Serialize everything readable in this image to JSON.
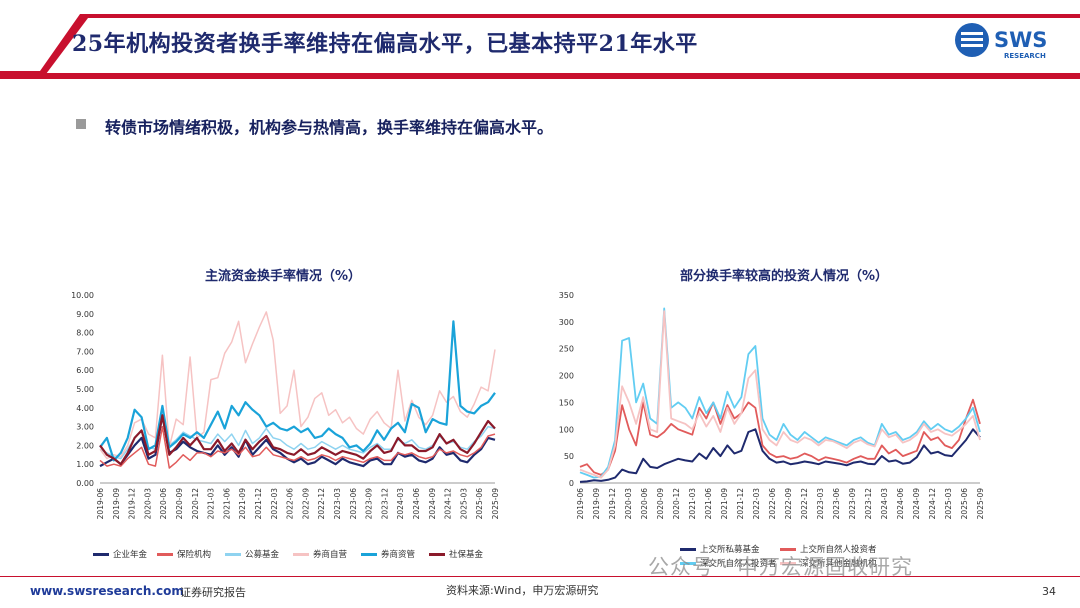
{
  "header": {
    "title": "25年机构投资者换手率维持在偏高水平，已基本持平21年水平",
    "logo_text": "SWS",
    "logo_subtext": "RESEARCH"
  },
  "bullet": {
    "text": "转债市场情绪积极，机构参与热情高，换手率维持在偏高水平。"
  },
  "colors": {
    "navy": "#1f2a6e",
    "accent_red": "#c8102e",
    "brand_blue": "#1f3b99"
  },
  "chart_data": [
    {
      "type": "line",
      "title": "主流资金换手率情况（%）",
      "ylim": [
        0,
        10
      ],
      "yticks": [
        "0.00",
        "1.00",
        "2.00",
        "3.00",
        "4.00",
        "5.00",
        "6.00",
        "7.00",
        "8.00",
        "9.00",
        "10.00"
      ],
      "xticks": [
        "2019-06",
        "2019-09",
        "2019-12",
        "2020-03",
        "2020-06",
        "2020-09",
        "2020-12",
        "2021-03",
        "2021-06",
        "2021-09",
        "2021-12",
        "2022-03",
        "2022-06",
        "2022-09",
        "2022-12",
        "2023-03",
        "2023-06",
        "2023-09",
        "2023-12",
        "2024-03",
        "2024-06",
        "2024-09",
        "2024-12",
        "2025-03",
        "2025-06",
        "2025-09"
      ],
      "series": [
        {
          "name": "企业年金",
          "color": "#1f2a6e",
          "width": 2.2,
          "values": [
            0.9,
            1.1,
            1.3,
            1.0,
            1.5,
            2.0,
            2.4,
            1.3,
            1.5,
            3.6,
            1.6,
            1.8,
            2.2,
            1.9,
            1.7,
            1.6,
            1.5,
            2.0,
            1.5,
            1.9,
            1.4,
            2.3,
            1.5,
            1.9,
            2.3,
            1.8,
            1.6,
            1.3,
            1.1,
            1.3,
            1.0,
            1.1,
            1.4,
            1.2,
            1.0,
            1.3,
            1.1,
            1.0,
            0.9,
            1.2,
            1.3,
            1.0,
            1.0,
            1.6,
            1.4,
            1.5,
            1.2,
            1.1,
            1.3,
            1.9,
            1.5,
            1.6,
            1.2,
            1.1,
            1.5,
            1.8,
            2.4,
            2.3
          ]
        },
        {
          "name": "保险机构",
          "color": "#e15b5b",
          "width": 1.5,
          "values": [
            1.2,
            0.9,
            1.0,
            0.9,
            1.3,
            1.6,
            1.9,
            1.0,
            0.9,
            3.0,
            0.8,
            1.1,
            1.5,
            1.2,
            1.6,
            1.6,
            1.4,
            1.7,
            1.6,
            1.8,
            1.5,
            1.9,
            1.4,
            1.5,
            1.9,
            1.5,
            1.4,
            1.3,
            1.2,
            1.4,
            1.2,
            1.3,
            1.5,
            1.4,
            1.2,
            1.4,
            1.3,
            1.2,
            1.1,
            1.3,
            1.4,
            1.2,
            1.2,
            1.6,
            1.5,
            1.6,
            1.4,
            1.3,
            1.4,
            1.8,
            1.6,
            1.7,
            1.5,
            1.4,
            1.6,
            1.9,
            2.5,
            2.6
          ]
        },
        {
          "name": "公募基金",
          "color": "#8fd3f0",
          "width": 1.5,
          "values": [
            1.8,
            1.6,
            1.4,
            1.3,
            1.8,
            2.4,
            2.8,
            1.9,
            1.8,
            3.8,
            2.0,
            2.3,
            2.7,
            2.5,
            2.3,
            2.2,
            2.1,
            2.6,
            2.2,
            2.6,
            2.0,
            2.8,
            2.1,
            2.4,
            2.9,
            2.4,
            2.3,
            2.0,
            1.8,
            2.1,
            1.8,
            1.9,
            2.2,
            2.0,
            1.8,
            2.0,
            1.8,
            1.7,
            1.6,
            1.9,
            2.1,
            1.8,
            1.8,
            2.3,
            2.1,
            2.3,
            1.9,
            1.8,
            2.0,
            2.5,
            2.1,
            2.2,
            1.9,
            1.8,
            2.2,
            2.5,
            3.0,
            2.9
          ]
        },
        {
          "name": "券商自营",
          "color": "#f6c3c3",
          "width": 1.5,
          "values": [
            1.8,
            1.3,
            1.5,
            1.4,
            2.0,
            3.2,
            3.4,
            2.6,
            2.4,
            6.8,
            1.9,
            3.4,
            3.1,
            6.7,
            2.4,
            2.7,
            5.5,
            5.6,
            6.9,
            7.5,
            8.6,
            6.4,
            7.4,
            8.3,
            9.1,
            7.6,
            3.7,
            4.1,
            6.0,
            3.0,
            3.5,
            4.5,
            4.8,
            3.6,
            3.9,
            3.2,
            3.5,
            2.9,
            2.6,
            3.4,
            3.8,
            3.2,
            2.9,
            6.0,
            3.3,
            4.4,
            3.5,
            3.1,
            3.6,
            4.9,
            4.3,
            4.6,
            3.8,
            3.5,
            4.2,
            5.1,
            4.9,
            7.1
          ]
        },
        {
          "name": "券商资管",
          "color": "#1aa3d9",
          "width": 2.2,
          "values": [
            1.9,
            2.4,
            1.2,
            1.6,
            2.4,
            3.9,
            3.5,
            1.8,
            2.0,
            4.1,
            1.9,
            2.2,
            2.6,
            2.4,
            2.7,
            2.4,
            3.1,
            3.8,
            2.9,
            4.1,
            3.6,
            4.3,
            3.9,
            3.6,
            3.0,
            3.2,
            2.9,
            2.8,
            3.0,
            2.7,
            2.9,
            2.4,
            2.5,
            2.9,
            2.6,
            2.4,
            1.9,
            2.0,
            1.7,
            2.1,
            2.8,
            2.3,
            2.9,
            3.2,
            2.7,
            4.2,
            4.0,
            2.7,
            3.4,
            3.2,
            3.1,
            8.6,
            4.1,
            3.8,
            3.7,
            4.1,
            4.3,
            4.8
          ]
        },
        {
          "name": "社保基金",
          "color": "#8b1a2a",
          "width": 2.2,
          "values": [
            2.0,
            1.5,
            1.3,
            1.0,
            1.6,
            2.4,
            2.8,
            1.5,
            1.7,
            3.6,
            1.5,
            1.9,
            2.4,
            2.0,
            2.4,
            1.8,
            1.8,
            2.3,
            1.7,
            2.1,
            1.6,
            2.3,
            1.8,
            2.2,
            2.5,
            1.9,
            1.8,
            1.6,
            1.5,
            1.8,
            1.5,
            1.6,
            1.9,
            1.7,
            1.5,
            1.7,
            1.6,
            1.5,
            1.3,
            1.7,
            2.0,
            1.6,
            1.7,
            2.4,
            2.0,
            2.0,
            1.7,
            1.7,
            1.9,
            2.6,
            2.1,
            2.3,
            1.8,
            1.6,
            2.1,
            2.7,
            3.3,
            2.9
          ]
        }
      ]
    },
    {
      "type": "line",
      "title": "部分换手率较高的投资人情况（%）",
      "ylim": [
        0,
        350
      ],
      "yticks": [
        "0",
        "50",
        "100",
        "150",
        "200",
        "250",
        "300",
        "350"
      ],
      "xticks": [
        "2019-06",
        "2019-09",
        "2019-12",
        "2020-03",
        "2020-06",
        "2020-09",
        "2020-12",
        "2021-03",
        "2021-06",
        "2021-09",
        "2021-12",
        "2022-03",
        "2022-06",
        "2022-09",
        "2022-12",
        "2023-03",
        "2023-06",
        "2023-09",
        "2023-12",
        "2024-03",
        "2024-06",
        "2024-09",
        "2024-12",
        "2025-03",
        "2025-06",
        "2025-09"
      ],
      "series": [
        {
          "name": "上交所私募基金",
          "color": "#1f2a6e",
          "width": 2.0,
          "values": [
            2,
            3,
            5,
            4,
            6,
            10,
            25,
            20,
            18,
            45,
            30,
            28,
            35,
            40,
            45,
            42,
            40,
            55,
            45,
            65,
            50,
            70,
            55,
            60,
            95,
            100,
            60,
            45,
            38,
            40,
            35,
            37,
            40,
            38,
            35,
            40,
            38,
            36,
            33,
            38,
            40,
            36,
            35,
            50,
            40,
            42,
            36,
            38,
            48,
            70,
            55,
            58,
            52,
            50,
            65,
            80,
            100,
            85
          ]
        },
        {
          "name": "上交所自然人投资者",
          "color": "#e15b5b",
          "width": 1.8,
          "values": [
            30,
            35,
            20,
            15,
            25,
            60,
            145,
            100,
            70,
            150,
            90,
            85,
            95,
            110,
            100,
            95,
            90,
            140,
            120,
            150,
            110,
            145,
            120,
            130,
            150,
            140,
            70,
            55,
            48,
            50,
            45,
            48,
            55,
            50,
            42,
            48,
            45,
            42,
            38,
            45,
            50,
            45,
            45,
            70,
            55,
            62,
            50,
            55,
            60,
            95,
            80,
            85,
            70,
            65,
            80,
            120,
            155,
            110
          ]
        },
        {
          "name": "深交所自然人投资者",
          "color": "#62cdf2",
          "width": 1.8,
          "values": [
            20,
            15,
            10,
            12,
            30,
            80,
            265,
            270,
            150,
            185,
            120,
            110,
            325,
            140,
            150,
            140,
            120,
            160,
            130,
            150,
            120,
            170,
            140,
            160,
            240,
            255,
            120,
            90,
            80,
            110,
            90,
            80,
            95,
            85,
            75,
            85,
            80,
            75,
            70,
            80,
            85,
            75,
            70,
            110,
            90,
            95,
            80,
            85,
            95,
            115,
            100,
            110,
            100,
            95,
            105,
            120,
            140,
            95
          ]
        },
        {
          "name": "深交所其他金融机构",
          "color": "#f6c3c3",
          "width": 1.8,
          "values": [
            25,
            20,
            15,
            10,
            25,
            70,
            180,
            150,
            110,
            160,
            100,
            95,
            320,
            120,
            115,
            110,
            100,
            130,
            105,
            125,
            95,
            140,
            110,
            130,
            195,
            210,
            100,
            80,
            70,
            95,
            80,
            75,
            85,
            80,
            70,
            80,
            78,
            72,
            65,
            75,
            80,
            72,
            68,
            100,
            85,
            90,
            75,
            80,
            90,
            110,
            95,
            100,
            92,
            88,
            98,
            110,
            125,
            80
          ]
        }
      ]
    }
  ],
  "footer": {
    "url": "www.swsresearch.com",
    "report_type": "证券研究报告",
    "source": "资料来源:Wind，申万宏源研究",
    "page_number": "34",
    "watermark": "公众号 · 申万宏源固收研究"
  }
}
